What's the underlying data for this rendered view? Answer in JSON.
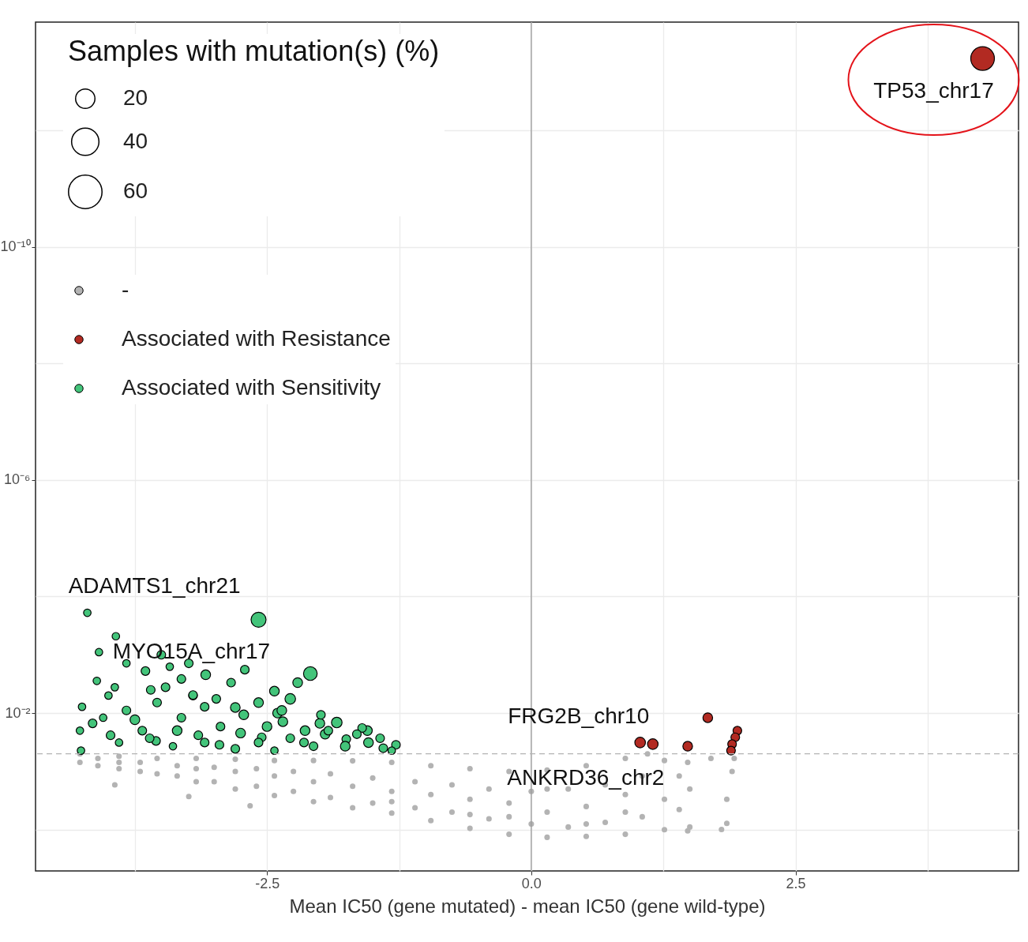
{
  "chart_data": {
    "type": "bubble",
    "xlabel": "Mean IC50 (gene mutated) - mean IC50 (gene wild-type)",
    "xlim": [
      -4.69,
      4.61
    ],
    "xticks": [
      {
        "value": -3.75,
        "label": null
      },
      -2.5,
      {
        "value": -1.25,
        "label": null
      },
      {
        "value": 0,
        "label": "0.0"
      },
      {
        "value": 1.25,
        "label": null
      },
      2.5,
      {
        "value": 3.75,
        "label": null
      }
    ],
    "ylim": [
      5.1,
      1.4e-14
    ],
    "yticks": [
      {
        "value": 1e-12,
        "label": null
      },
      {
        "value": 1e-10,
        "label": "10⁻¹⁰"
      },
      {
        "value": 1e-08,
        "label": null
      },
      {
        "value": 1e-06,
        "label": "10⁻⁶"
      },
      {
        "value": 0.0001,
        "label": null
      },
      {
        "value": 0.01,
        "label": "10⁻²"
      },
      {
        "value": 1,
        "label": null
      }
    ],
    "log": "y",
    "grid": true,
    "legend": "top left",
    "marker": "circle",
    "legend_title": "Samples with mutation(s) (%)",
    "size_legend": [
      20,
      40,
      60
    ],
    "ref_lines": [
      {
        "axis": "x",
        "value": 0,
        "color": "#999999",
        "line_style": "solid"
      },
      {
        "axis": "y",
        "value": 0.05,
        "color": "#b3b3b3",
        "line_style": "dashed"
      }
    ],
    "annotations": [
      {
        "text": "TP53_chr17",
        "x": 4.27,
        "y": 5.9e-14
      },
      {
        "text": "ADAMTS1_chr21",
        "x": -4.2,
        "y": 0.00019
      },
      {
        "text": "MYO15A_chr17",
        "x": -2.58,
        "y": 0.00025
      },
      {
        "text": "FRG2B_chr10",
        "x": 1.03,
        "y": 0.032
      },
      {
        "text": "ANKRD36_chr2",
        "x": 1.15,
        "y": 0.034
      }
    ],
    "series": [
      {
        "name": "-",
        "type": "scatter",
        "color": "#b3b3b3",
        "x": [
          -4.1,
          -3.7,
          -3.35,
          -3.0,
          -2.6,
          -2.25,
          -1.9,
          -1.5,
          -1.1,
          -0.75,
          -0.4,
          0,
          0.35,
          0.7,
          1.05,
          1.4,
          -4.1,
          -3.7,
          -3.35,
          -3.0,
          -2.6,
          -2.25,
          -1.9,
          -1.5,
          -1.1,
          -0.75,
          -0.4,
          0,
          0.35,
          0.7,
          1.05,
          1.4,
          -4.27,
          -3.9,
          -3.54,
          -3.17,
          -2.8,
          -2.43,
          -2.06,
          -1.69,
          -1.32,
          -0.95,
          -0.58,
          -0.21,
          0.15,
          0.52,
          0.89,
          1.1,
          1.26,
          1.48,
          1.7,
          -4.27,
          -3.9,
          -3.54,
          -3.17,
          -2.8,
          -2.43,
          -2.06,
          -1.69,
          -1.32,
          -0.95,
          -0.58,
          -0.21,
          0.15,
          0.52,
          0.89,
          1.26,
          1.5,
          -3.9,
          -3.17,
          -2.43,
          -1.69,
          -0.95,
          -0.21,
          0.52,
          1.26,
          -2.8,
          -2.06,
          -1.32,
          -0.58,
          0.15,
          0.89,
          1.5,
          -0.21,
          0.52,
          -0.58,
          -1.32,
          0.89,
          0.15,
          -3.94,
          -3.24,
          -2.66,
          1.48,
          1.85,
          1.85,
          1.9,
          1.92,
          1.8
        ],
        "values": [
          0.06,
          0.07,
          0.08,
          0.085,
          0.09,
          0.1,
          0.11,
          0.13,
          0.15,
          0.17,
          0.2,
          0.22,
          0.2,
          0.17,
          0.12,
          0.12,
          0.08,
          0.1,
          0.12,
          0.15,
          0.18,
          0.22,
          0.28,
          0.35,
          0.42,
          0.5,
          0.65,
          0.8,
          0.9,
          0.75,
          0.6,
          0.45,
          0.05,
          0.055,
          0.06,
          0.06,
          0.062,
          0.065,
          0.065,
          0.066,
          0.07,
          0.08,
          0.09,
          0.1,
          0.095,
          0.08,
          0.06,
          0.05,
          0.065,
          0.07,
          0.06,
          0.07,
          0.09,
          0.11,
          0.15,
          0.2,
          0.26,
          0.33,
          0.42,
          0.52,
          0.7,
          0.95,
          1.2,
          1.35,
          1.3,
          1.2,
          1.0,
          0.9,
          0.07,
          0.09,
          0.12,
          0.18,
          0.25,
          0.35,
          0.4,
          0.3,
          0.1,
          0.15,
          0.22,
          0.3,
          0.5,
          0.5,
          0.2,
          0.6,
          0.8,
          0.55,
          0.33,
          0.25,
          0.2,
          0.17,
          0.27,
          0.39,
          1.05,
          0.78,
          0.3,
          0.1,
          0.06,
          0.99
        ]
      },
      {
        "name": "Associated with Resistance",
        "type": "bubble",
        "color": "#b22a22",
        "x": [
          4.27,
          1.03,
          1.15,
          1.48,
          1.67,
          1.95,
          1.93,
          1.9,
          1.89
        ],
        "values": [
          5.9e-14,
          0.032,
          0.034,
          0.037,
          0.012,
          0.02,
          0.026,
          0.034,
          0.044
        ],
        "sizes": [
          30,
          6,
          6,
          5,
          5,
          4,
          4,
          4,
          4
        ]
      },
      {
        "name": "Associated with Sensitivity",
        "type": "bubble",
        "color": "#43c47a",
        "x": [
          -4.15,
          -3.98,
          -3.75,
          -3.55,
          -3.35,
          -3.15,
          -2.95,
          -2.75,
          -2.55,
          -2.35,
          -2.15,
          -1.95,
          -1.75,
          -1.55,
          -1.4,
          -4.0,
          -3.6,
          -3.2,
          -2.8,
          -2.4,
          -2.0,
          -1.6,
          -4.2,
          -2.58,
          -3.93,
          -4.09,
          -3.83,
          -2.09,
          -4.11,
          -3.94,
          -3.65,
          -3.42,
          -3.24,
          -3.08,
          -2.84,
          -2.71,
          -2.43,
          -2.28,
          -1.99,
          -1.84,
          -1.65,
          -1.43,
          -1.28,
          -4.25,
          -4.27,
          -4.26,
          -4.05,
          -3.83,
          -3.54,
          -3.31,
          -3.09,
          -2.94,
          -2.72,
          -2.5,
          -2.28,
          -2.06,
          -1.76,
          -1.54,
          -3.9,
          -3.61,
          -3.39,
          -3.09,
          -2.8,
          -2.58,
          -3.68,
          -3.46,
          -3.2,
          -2.98,
          -2.58,
          -2.36,
          -2.14,
          -1.92,
          -2.43,
          -1.32,
          -3.31,
          -3.5,
          -2.21
        ],
        "values": [
          0.015,
          0.024,
          0.013,
          0.03,
          0.02,
          0.024,
          0.035,
          0.022,
          0.026,
          0.014,
          0.032,
          0.023,
          0.028,
          0.02,
          0.04,
          0.005,
          0.004,
          0.005,
          0.008,
          0.01,
          0.015,
          0.018,
          0.00019,
          0.00025,
          0.00048,
          0.0009,
          0.0014,
          0.0021,
          0.0028,
          0.0036,
          0.0019,
          0.0016,
          0.0014,
          0.0022,
          0.003,
          0.0018,
          0.0042,
          0.0057,
          0.0107,
          0.0145,
          0.023,
          0.027,
          0.035,
          0.0078,
          0.02,
          0.044,
          0.012,
          0.009,
          0.0066,
          0.012,
          0.0078,
          0.017,
          0.0107,
          0.017,
          0.027,
          0.037,
          0.037,
          0.032,
          0.032,
          0.027,
          0.037,
          0.032,
          0.041,
          0.032,
          0.02,
          0.0036,
          0.0049,
          0.0057,
          0.0066,
          0.009,
          0.02,
          0.02,
          0.044,
          0.044,
          0.0026,
          0.001,
          0.003
        ],
        "sizes": [
          4,
          4,
          5,
          4,
          5,
          4,
          4,
          5,
          4,
          5,
          4,
          5,
          4,
          5,
          4,
          3,
          4,
          4,
          5,
          5,
          5,
          4,
          3,
          12,
          3,
          3,
          3,
          10,
          3,
          3,
          4,
          3,
          4,
          5,
          4,
          4,
          5,
          6,
          4,
          6,
          4,
          4,
          4,
          3,
          3,
          3,
          3,
          4,
          4,
          4,
          4,
          4,
          5,
          5,
          4,
          4,
          5,
          5,
          3,
          4,
          3,
          4,
          4,
          4,
          4,
          4,
          4,
          4,
          5,
          5,
          5,
          4,
          3,
          3,
          4,
          4,
          5
        ]
      }
    ]
  }
}
